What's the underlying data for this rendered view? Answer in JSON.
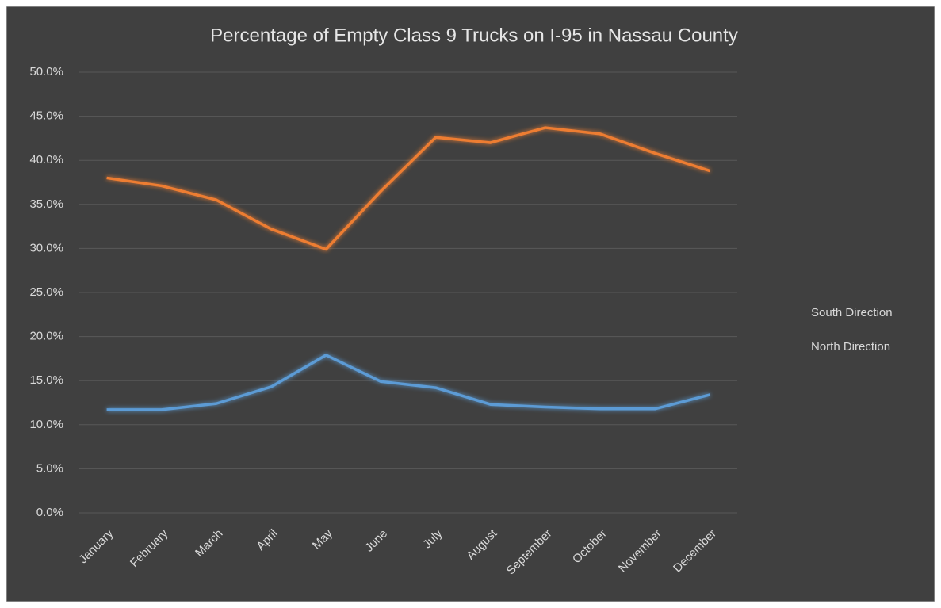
{
  "chart_data": {
    "type": "line",
    "title": "Percentage of Empty Class 9 Trucks on I-95 in Nassau County",
    "categories": [
      "January",
      "February",
      "March",
      "April",
      "May",
      "June",
      "July",
      "August",
      "September",
      "October",
      "November",
      "December"
    ],
    "series": [
      {
        "name": "South Direction",
        "color": "#5b9bd5",
        "values": [
          11.7,
          11.7,
          12.4,
          14.3,
          17.9,
          14.9,
          14.2,
          12.3,
          12.0,
          11.8,
          11.8,
          13.4
        ]
      },
      {
        "name": "North Direction",
        "color": "#ed7d31",
        "values": [
          38.0,
          37.1,
          35.5,
          32.2,
          29.9,
          36.5,
          42.6,
          42.0,
          43.7,
          43.0,
          40.8,
          38.8
        ]
      }
    ],
    "ylim": [
      0,
      50
    ],
    "yticks": [
      {
        "value": 0,
        "label": "0.0%"
      },
      {
        "value": 5,
        "label": "5.0%"
      },
      {
        "value": 10,
        "label": "10.0%"
      },
      {
        "value": 15,
        "label": "15.0%"
      },
      {
        "value": 20,
        "label": "20.0%"
      },
      {
        "value": 25,
        "label": "25.0%"
      },
      {
        "value": 30,
        "label": "30.0%"
      },
      {
        "value": 35,
        "label": "35.0%"
      },
      {
        "value": 40,
        "label": "40.0%"
      },
      {
        "value": 45,
        "label": "45.0%"
      },
      {
        "value": 50,
        "label": "50.0%"
      }
    ],
    "grid": true,
    "legend": "right"
  }
}
